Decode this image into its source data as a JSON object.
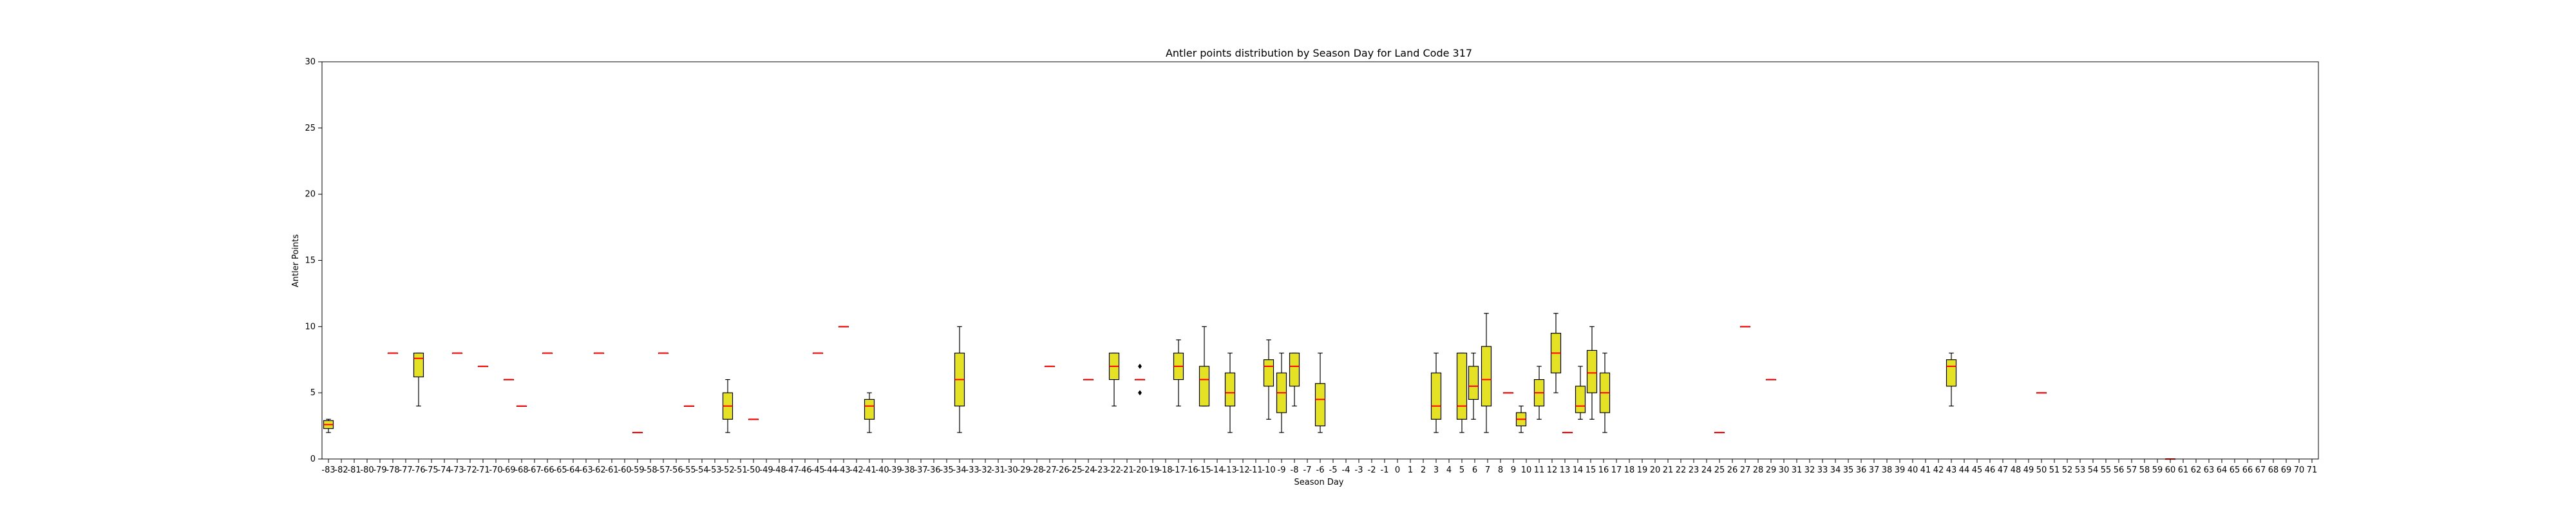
{
  "chart_data": {
    "type": "box",
    "title": "Antler points distribution by Season Day for Land Code 317",
    "xlabel": "Season Day",
    "ylabel": "Antler Points",
    "ylim": [
      0,
      30
    ],
    "y_ticks": [
      0,
      5,
      10,
      15,
      20,
      25,
      30
    ],
    "x_min": -83,
    "x_max": 71,
    "grid": false,
    "legend": "none",
    "colors": {
      "box_fill": "#e5e125",
      "median": "#ff0000",
      "whisker": "#000000"
    },
    "boxes": [
      {
        "x": -83,
        "whislo": 2,
        "q1": 2.3,
        "med": 2.6,
        "q3": 2.9,
        "whishi": 3
      },
      {
        "x": -78,
        "whislo": 8,
        "q1": 8,
        "med": 8,
        "q3": 8,
        "whishi": 8
      },
      {
        "x": -76,
        "whislo": 4,
        "q1": 6.2,
        "med": 7.6,
        "q3": 8,
        "whishi": 8
      },
      {
        "x": -73,
        "whislo": 8,
        "q1": 8,
        "med": 8,
        "q3": 8,
        "whishi": 8
      },
      {
        "x": -71,
        "whislo": 7,
        "q1": 7,
        "med": 7,
        "q3": 7,
        "whishi": 7
      },
      {
        "x": -69,
        "whislo": 6,
        "q1": 6,
        "med": 6,
        "q3": 6,
        "whishi": 6
      },
      {
        "x": -68,
        "whislo": 4,
        "q1": 4,
        "med": 4,
        "q3": 4,
        "whishi": 4
      },
      {
        "x": -66,
        "whislo": 8,
        "q1": 8,
        "med": 8,
        "q3": 8,
        "whishi": 8
      },
      {
        "x": -62,
        "whislo": 8,
        "q1": 8,
        "med": 8,
        "q3": 8,
        "whishi": 8
      },
      {
        "x": -59,
        "whislo": 2,
        "q1": 2,
        "med": 2,
        "q3": 2,
        "whishi": 2
      },
      {
        "x": -57,
        "whislo": 8,
        "q1": 8,
        "med": 8,
        "q3": 8,
        "whishi": 8
      },
      {
        "x": -55,
        "whislo": 4,
        "q1": 4,
        "med": 4,
        "q3": 4,
        "whishi": 4
      },
      {
        "x": -52,
        "whislo": 2,
        "q1": 3,
        "med": 4,
        "q3": 5,
        "whishi": 6
      },
      {
        "x": -50,
        "whislo": 3,
        "q1": 3,
        "med": 3,
        "q3": 3,
        "whishi": 3
      },
      {
        "x": -45,
        "whislo": 8,
        "q1": 8,
        "med": 8,
        "q3": 8,
        "whishi": 8
      },
      {
        "x": -43,
        "whislo": 10,
        "q1": 10,
        "med": 10,
        "q3": 10,
        "whishi": 10
      },
      {
        "x": -41,
        "whislo": 2,
        "q1": 3,
        "med": 4,
        "q3": 4.5,
        "whishi": 5
      },
      {
        "x": -34,
        "whislo": 2,
        "q1": 4,
        "med": 6,
        "q3": 8,
        "whishi": 10
      },
      {
        "x": -27,
        "whislo": 7,
        "q1": 7,
        "med": 7,
        "q3": 7,
        "whishi": 7
      },
      {
        "x": -24,
        "whislo": 6,
        "q1": 6,
        "med": 6,
        "q3": 6,
        "whishi": 6
      },
      {
        "x": -22,
        "whislo": 4,
        "q1": 6,
        "med": 7,
        "q3": 8,
        "whishi": 8
      },
      {
        "x": -20,
        "whislo": 6,
        "q1": 6,
        "med": 6,
        "q3": 6,
        "whishi": 6,
        "fliers": [
          5,
          7
        ]
      },
      {
        "x": -17,
        "whislo": 4,
        "q1": 6,
        "med": 7,
        "q3": 8,
        "whishi": 9
      },
      {
        "x": -15,
        "whislo": 4,
        "q1": 4,
        "med": 6,
        "q3": 7,
        "whishi": 10
      },
      {
        "x": -13,
        "whislo": 2,
        "q1": 4,
        "med": 5,
        "q3": 6.5,
        "whishi": 8
      },
      {
        "x": -10,
        "whislo": 3,
        "q1": 5.5,
        "med": 7,
        "q3": 7.5,
        "whishi": 9
      },
      {
        "x": -9,
        "whislo": 2,
        "q1": 3.5,
        "med": 5,
        "q3": 6.5,
        "whishi": 8
      },
      {
        "x": -8,
        "whislo": 4,
        "q1": 5.5,
        "med": 7,
        "q3": 8,
        "whishi": 8
      },
      {
        "x": -6,
        "whislo": 2,
        "q1": 2.5,
        "med": 4.5,
        "q3": 5.7,
        "whishi": 8
      },
      {
        "x": 3,
        "whislo": 2,
        "q1": 3,
        "med": 4,
        "q3": 6.5,
        "whishi": 8
      },
      {
        "x": 5,
        "whislo": 2,
        "q1": 3,
        "med": 4,
        "q3": 8,
        "whishi": 8
      },
      {
        "x": 5.9,
        "whislo": 3,
        "q1": 4.5,
        "med": 5.5,
        "q3": 7,
        "whishi": 8
      },
      {
        "x": 6.9,
        "whislo": 2,
        "q1": 4,
        "med": 6,
        "q3": 8.5,
        "whishi": 11
      },
      {
        "x": 8.6,
        "whislo": 5,
        "q1": 5,
        "med": 5,
        "q3": 5,
        "whishi": 5
      },
      {
        "x": 9.6,
        "whislo": 2,
        "q1": 2.5,
        "med": 3,
        "q3": 3.5,
        "whishi": 4
      },
      {
        "x": 11,
        "whislo": 3,
        "q1": 4,
        "med": 5,
        "q3": 6,
        "whishi": 7
      },
      {
        "x": 12.3,
        "whislo": 5,
        "q1": 6.5,
        "med": 8,
        "q3": 9.5,
        "whishi": 11
      },
      {
        "x": 13.2,
        "whislo": 2,
        "q1": 2,
        "med": 2,
        "q3": 2,
        "whishi": 2
      },
      {
        "x": 14.2,
        "whislo": 3,
        "q1": 3.5,
        "med": 4,
        "q3": 5.5,
        "whishi": 7
      },
      {
        "x": 15.1,
        "whislo": 3,
        "q1": 5,
        "med": 6.5,
        "q3": 8.2,
        "whishi": 10
      },
      {
        "x": 16.1,
        "whislo": 2,
        "q1": 3.5,
        "med": 5,
        "q3": 6.5,
        "whishi": 8
      },
      {
        "x": 25,
        "whislo": 2,
        "q1": 2,
        "med": 2,
        "q3": 2,
        "whishi": 2
      },
      {
        "x": 27,
        "whislo": 10,
        "q1": 10,
        "med": 10,
        "q3": 10,
        "whishi": 10
      },
      {
        "x": 29,
        "whislo": 6,
        "q1": 6,
        "med": 6,
        "q3": 6,
        "whishi": 6
      },
      {
        "x": 43,
        "whislo": 4,
        "q1": 5.5,
        "med": 7,
        "q3": 7.5,
        "whishi": 8
      },
      {
        "x": 50,
        "whislo": 5,
        "q1": 5,
        "med": 5,
        "q3": 5,
        "whishi": 5
      },
      {
        "x": 60,
        "whislo": 0,
        "q1": 0,
        "med": 0,
        "q3": 0,
        "whishi": 0
      }
    ]
  }
}
